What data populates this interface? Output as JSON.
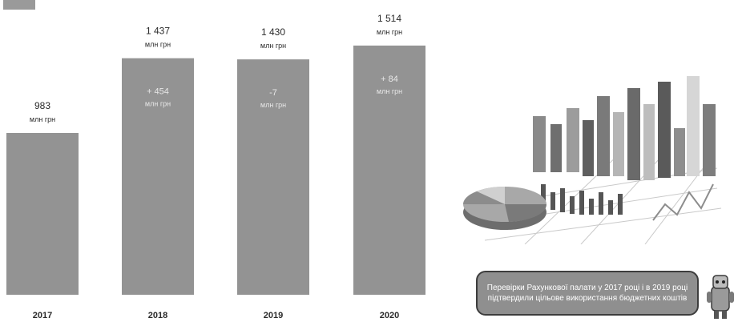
{
  "legend": {
    "label": ""
  },
  "chart_data": {
    "type": "bar",
    "categories": [
      "2017",
      "2018",
      "2019",
      "2020"
    ],
    "values": [
      983,
      1437,
      1430,
      1514
    ],
    "value_labels": [
      "983",
      "1 437",
      "1 430",
      "1 514"
    ],
    "unit_label": "млн грн",
    "deltas": [
      "",
      "+ 454",
      "-7",
      "+ 84"
    ],
    "delta_unit_label": "млн грн",
    "bar_color": "#939393",
    "ylim": [
      0,
      1600
    ],
    "grid": false,
    "title": "",
    "xlabel": "",
    "ylabel": ""
  },
  "info_box": {
    "text": "Перевірки Рахункової палати у 2017 році і в 2019 році підтвердили цільове використання бюджетних коштів"
  },
  "illustration": {
    "icon": "bar-pie-chart-illustration-icon"
  },
  "mascot": {
    "icon": "robot-mascot-icon"
  }
}
